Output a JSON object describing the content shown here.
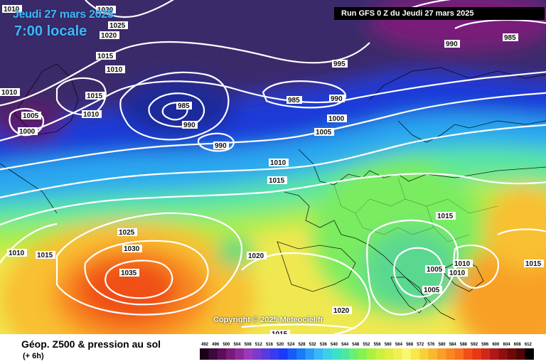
{
  "header": {
    "date_title": "Jeudi 27 mars 2025",
    "time_title": "7:00 locale",
    "run_info": "Run GFS 0 Z du Jeudi 27 mars 2025"
  },
  "copyright": "Copyright © 2025 Meteociel.fr",
  "footer": {
    "title": "Géop. Z500 & pression au sol",
    "subtitle": "(+ 6h)"
  },
  "isobar_labels": [
    "1030",
    "1025",
    "1020",
    "1015",
    "1010",
    "1010",
    "1005",
    "1000",
    "1015",
    "1010",
    "985",
    "990",
    "990",
    "985",
    "990",
    "1000",
    "995",
    "990",
    "985",
    "1005",
    "1010",
    "1015",
    "1015",
    "1025",
    "1030",
    "1035",
    "1010",
    "1015",
    "1020",
    "1005",
    "1005",
    "1010",
    "1010",
    "1015",
    "1020",
    "1015",
    "1010"
  ],
  "legend_colors": [
    "#1a0018",
    "#3a0a3a",
    "#5a0f5a",
    "#7a1a7a",
    "#8a2a9a",
    "#9a3ab8",
    "#7a3ad0",
    "#5a3ae0",
    "#3a3af0",
    "#1a3af8",
    "#1a5af8",
    "#1a7af8",
    "#2a9af8",
    "#3ab8f8",
    "#3ad0e8",
    "#3ae0c8",
    "#4ae8a0",
    "#6af070",
    "#8af050",
    "#aaf040",
    "#caf040",
    "#e0f040",
    "#f0f050",
    "#f8f870",
    "#f8e848",
    "#f8d038",
    "#f8b830",
    "#f8a028",
    "#f88820",
    "#f87020",
    "#f05018",
    "#e83818",
    "#d02818",
    "#b01818",
    "#901010",
    "#700808",
    "#500404",
    "#000000"
  ],
  "legend_ticks": [
    "492",
    "496",
    "500",
    "504",
    "508",
    "512",
    "516",
    "520",
    "524",
    "528",
    "532",
    "536",
    "540",
    "544",
    "548",
    "552",
    "556",
    "560",
    "564",
    "568",
    "572",
    "576",
    "580",
    "584",
    "588",
    "592",
    "596",
    "600",
    "604",
    "608",
    "612"
  ]
}
